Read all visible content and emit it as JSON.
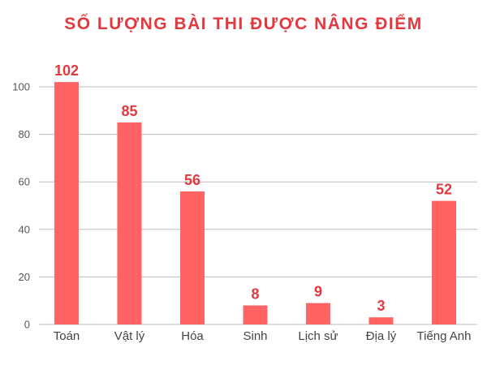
{
  "chart_data": {
    "type": "bar",
    "title": "SỐ LƯỢNG BÀI THI ĐƯỢC NÂNG ĐIỂM",
    "categories": [
      "Toán",
      "Vật lý",
      "Hóa",
      "Sinh",
      "Lịch sử",
      "Địa lý",
      "Tiếng Anh"
    ],
    "values": [
      102,
      85,
      56,
      8,
      9,
      3,
      52
    ],
    "xlabel": "",
    "ylabel": "",
    "ylim": [
      0,
      100
    ],
    "yticks": [
      0,
      20,
      40,
      60,
      80,
      100
    ],
    "grid": true,
    "bar_color": "#ff6363",
    "label_color": "#e2393f",
    "grid_color": "#bdbdbd"
  }
}
